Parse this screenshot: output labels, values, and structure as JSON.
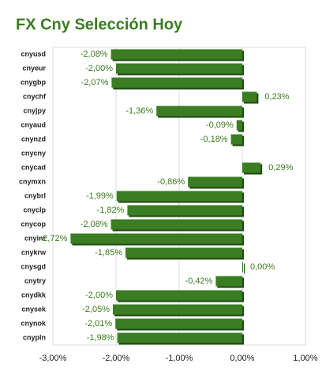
{
  "chart_data": {
    "type": "hbar",
    "title": "FX Cny Selección Hoy",
    "categories": [
      "cnyusd",
      "cnyeur",
      "cnygbp",
      "cnychf",
      "cnyjpy",
      "cnyaud",
      "cnynzd",
      "cnycny",
      "cnycad",
      "cnymxn",
      "cnybrl",
      "cnyclp",
      "cnycop",
      "cnyinr",
      "cnykrw",
      "cnysgd",
      "cnytry",
      "cnydkk",
      "cnysek",
      "cnynok",
      "cnypln"
    ],
    "values": [
      -2.08,
      -2.0,
      -2.07,
      0.23,
      -1.36,
      -0.09,
      -0.18,
      null,
      0.29,
      -0.86,
      -1.99,
      -1.82,
      -2.08,
      -2.72,
      -1.85,
      0.0,
      -0.42,
      -2.0,
      -2.05,
      -2.01,
      -1.98
    ],
    "value_labels": [
      "-2,08%",
      "-2,00%",
      "-2,07%",
      "0,23%",
      "-1,36%",
      "-0,09%",
      "-0,18%",
      null,
      "0,29%",
      "-0,86%",
      "-1,99%",
      "-1,82%",
      "-2,08%",
      "-2,72%",
      "-1,85%",
      "0,00%",
      "-0,42%",
      "-2,00%",
      "-2,05%",
      "-2,01%",
      "-1,98%"
    ],
    "color": "#3a7d22",
    "xlim": [
      -3,
      1
    ],
    "xticks": [
      {
        "value": -3,
        "label": "-3,00%"
      },
      {
        "value": -2,
        "label": "-2,00%"
      },
      {
        "value": -1,
        "label": "-1,00%"
      },
      {
        "value": 0,
        "label": "0,00%"
      },
      {
        "value": 1,
        "label": "1,00%"
      }
    ],
    "grid": true
  }
}
